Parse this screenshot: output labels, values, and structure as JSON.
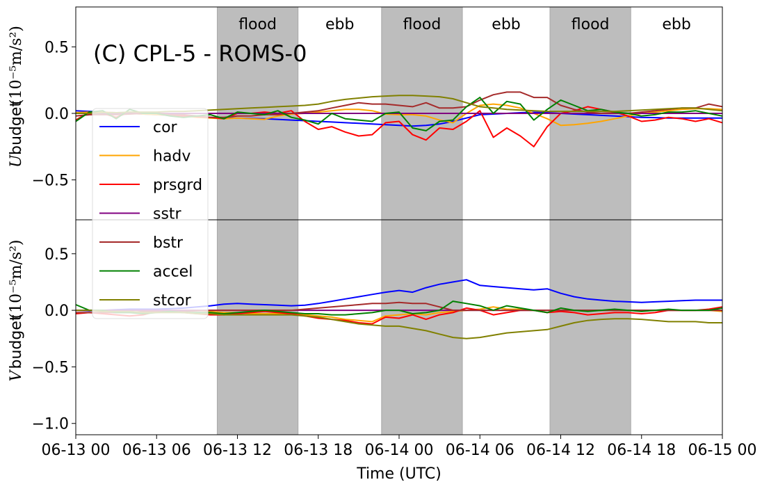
{
  "chart_data": {
    "type": "line",
    "title": "(C) CPL-5 - ROMS-0",
    "xlabel": "Time (UTC)",
    "x_tick_labels": [
      "06-13 00",
      "06-13 06",
      "06-13 12",
      "06-13 18",
      "06-14 00",
      "06-14 06",
      "06-14 12",
      "06-14 18",
      "06-15 00"
    ],
    "x_tick_hours": [
      0,
      6,
      12,
      18,
      24,
      30,
      36,
      42,
      48
    ],
    "xlim": [
      0,
      48
    ],
    "x": [
      0,
      1,
      2,
      3,
      4,
      5,
      6,
      7,
      8,
      9,
      10,
      11,
      12,
      13,
      14,
      15,
      16,
      17,
      18,
      19,
      20,
      21,
      22,
      23,
      24,
      25,
      26,
      27,
      28,
      29,
      30,
      31,
      32,
      33,
      34,
      35,
      36,
      37,
      38,
      39,
      40,
      41,
      42,
      43,
      44,
      45,
      46,
      47,
      48
    ],
    "tidal_phases": [
      {
        "label": "flood",
        "start": 10.5,
        "end": 16.5,
        "shaded": true
      },
      {
        "label": "ebb",
        "start": 16.5,
        "end": 22.7,
        "shaded": false
      },
      {
        "label": "flood",
        "start": 22.7,
        "end": 28.7,
        "shaded": true
      },
      {
        "label": "ebb",
        "start": 28.7,
        "end": 35.2,
        "shaded": false
      },
      {
        "label": "flood",
        "start": 35.2,
        "end": 41.2,
        "shaded": true
      },
      {
        "label": "ebb",
        "start": 41.2,
        "end": 48,
        "shaded": false
      }
    ],
    "legend": {
      "placement": "left",
      "entries": [
        "cor",
        "hadv",
        "prsgrd",
        "sstr",
        "bstr",
        "accel",
        "stcor"
      ]
    },
    "panels": [
      {
        "ylabel_prefix": "U",
        "ylabel_text": "budget",
        "ylabel_units": "(10⁻⁵m/s²)",
        "ylim": [
          -0.8,
          0.8
        ],
        "yticks": [
          0.5,
          0.0,
          -0.5
        ],
        "ytick_labels": [
          "0.5",
          "0.0",
          "−0.5"
        ],
        "series": [
          {
            "name": "cor",
            "color": "#0000ff",
            "values": [
              0.02,
              0.015,
              0.01,
              0.005,
              0.0,
              -0.005,
              -0.01,
              -0.015,
              -0.02,
              -0.025,
              -0.03,
              -0.035,
              -0.035,
              -0.038,
              -0.04,
              -0.045,
              -0.05,
              -0.055,
              -0.06,
              -0.065,
              -0.07,
              -0.075,
              -0.08,
              -0.085,
              -0.09,
              -0.095,
              -0.09,
              -0.08,
              -0.06,
              -0.035,
              -0.01,
              -0.005,
              0.0,
              0.005,
              0.008,
              0.005,
              0.0,
              -0.005,
              -0.01,
              -0.015,
              -0.02,
              -0.025,
              -0.03,
              -0.032,
              -0.035,
              -0.035,
              -0.035,
              -0.035,
              -0.035
            ]
          },
          {
            "name": "hadv",
            "color": "#ffa500",
            "values": [
              0.005,
              0.01,
              0.01,
              0.005,
              0.0,
              -0.005,
              -0.01,
              -0.015,
              -0.02,
              -0.03,
              -0.035,
              -0.04,
              -0.035,
              -0.04,
              -0.045,
              -0.02,
              -0.005,
              0.0,
              0.01,
              0.02,
              0.03,
              0.03,
              0.02,
              -0.005,
              -0.01,
              -0.01,
              -0.02,
              -0.05,
              -0.07,
              0.0,
              0.06,
              0.07,
              0.06,
              0.04,
              0.0,
              -0.04,
              -0.09,
              -0.085,
              -0.075,
              -0.06,
              -0.04,
              -0.02,
              0.0,
              0.01,
              0.02,
              0.03,
              0.035,
              0.035,
              0.03
            ]
          },
          {
            "name": "prsgrd",
            "color": "#ff0000",
            "values": [
              -0.05,
              0.01,
              0.0,
              -0.03,
              0.01,
              0.0,
              0.005,
              -0.01,
              -0.02,
              -0.025,
              -0.03,
              -0.04,
              0.0,
              0.0,
              0.01,
              0.0,
              0.02,
              -0.06,
              -0.12,
              -0.1,
              -0.14,
              -0.17,
              -0.16,
              -0.07,
              -0.06,
              -0.16,
              -0.2,
              -0.11,
              -0.12,
              -0.06,
              0.02,
              -0.18,
              -0.11,
              -0.17,
              -0.25,
              -0.1,
              0.0,
              0.02,
              0.05,
              0.03,
              0.01,
              -0.02,
              -0.06,
              -0.05,
              -0.03,
              -0.04,
              -0.06,
              -0.04,
              -0.07
            ]
          },
          {
            "name": "sstr",
            "color": "#800080",
            "values": [
              0.0,
              0.0,
              0.0,
              0.0,
              0.0,
              0.0,
              0.0,
              0.0,
              0.0,
              0.0,
              0.0,
              0.0,
              0.0,
              0.0,
              0.0,
              0.0,
              0.0,
              0.0,
              0.0,
              0.0,
              0.0,
              0.0,
              0.0,
              0.0,
              0.0,
              0.0,
              0.0,
              0.0,
              0.0,
              0.0,
              0.0,
              0.0,
              0.0,
              0.0,
              0.0,
              0.0,
              0.0,
              0.0,
              0.0,
              0.0,
              0.0,
              0.0,
              0.0,
              0.0,
              0.0,
              0.0,
              0.0,
              0.0,
              0.0
            ]
          },
          {
            "name": "bstr",
            "color": "#a52a2a",
            "values": [
              -0.02,
              -0.01,
              -0.01,
              -0.01,
              -0.005,
              0.0,
              0.0,
              -0.01,
              -0.01,
              -0.02,
              -0.03,
              -0.03,
              -0.02,
              -0.02,
              -0.01,
              -0.01,
              0.0,
              0.01,
              0.02,
              0.04,
              0.06,
              0.08,
              0.07,
              0.07,
              0.06,
              0.05,
              0.08,
              0.04,
              0.04,
              0.05,
              0.1,
              0.14,
              0.16,
              0.16,
              0.12,
              0.12,
              0.06,
              0.03,
              0.01,
              0.0,
              0.005,
              0.0,
              0.01,
              0.02,
              0.03,
              0.04,
              0.04,
              0.07,
              0.05
            ]
          },
          {
            "name": "accel",
            "color": "#008000",
            "values": [
              -0.06,
              0.01,
              0.02,
              -0.04,
              0.03,
              0.0,
              0.0,
              -0.02,
              -0.03,
              -0.02,
              -0.01,
              -0.04,
              0.01,
              0.0,
              -0.01,
              0.02,
              -0.03,
              -0.05,
              -0.08,
              0.0,
              -0.04,
              -0.05,
              -0.06,
              0.0,
              0.01,
              -0.11,
              -0.13,
              -0.06,
              -0.05,
              0.05,
              0.12,
              0.0,
              0.09,
              0.07,
              -0.05,
              0.03,
              0.1,
              0.06,
              0.02,
              0.03,
              0.01,
              0.0,
              -0.02,
              -0.01,
              0.01,
              0.01,
              0.02,
              0.0,
              -0.02
            ]
          },
          {
            "name": "stcor",
            "color": "#808000",
            "values": [
              0.0,
              0.0,
              0.005,
              0.005,
              0.01,
              0.01,
              0.01,
              0.015,
              0.015,
              0.02,
              0.025,
              0.03,
              0.035,
              0.04,
              0.045,
              0.05,
              0.055,
              0.06,
              0.07,
              0.09,
              0.105,
              0.115,
              0.125,
              0.13,
              0.135,
              0.135,
              0.13,
              0.125,
              0.11,
              0.08,
              0.05,
              0.04,
              0.03,
              0.025,
              0.02,
              0.015,
              0.015,
              0.015,
              0.015,
              0.015,
              0.015,
              0.02,
              0.025,
              0.03,
              0.035,
              0.04,
              0.04,
              0.03,
              0.02
            ]
          }
        ]
      },
      {
        "ylabel_prefix": "V",
        "ylabel_text": "budget",
        "ylabel_units": "(10⁻⁵m/s²)",
        "ylim": [
          -1.1,
          0.8
        ],
        "yticks": [
          0.5,
          0.0,
          -0.5,
          -1.0
        ],
        "ytick_labels": [
          "0.5",
          "0.0",
          "−0.5",
          "−1.0"
        ],
        "series": [
          {
            "name": "cor",
            "color": "#0000ff",
            "values": [
              0.0,
              -0.005,
              0.0,
              0.005,
              0.01,
              0.01,
              0.01,
              0.015,
              0.02,
              0.03,
              0.04,
              0.055,
              0.06,
              0.055,
              0.05,
              0.045,
              0.04,
              0.045,
              0.06,
              0.08,
              0.1,
              0.12,
              0.14,
              0.16,
              0.175,
              0.16,
              0.2,
              0.23,
              0.25,
              0.27,
              0.22,
              0.21,
              0.2,
              0.19,
              0.18,
              0.19,
              0.15,
              0.12,
              0.1,
              0.09,
              0.08,
              0.075,
              0.07,
              0.075,
              0.08,
              0.085,
              0.09,
              0.09,
              0.09
            ]
          },
          {
            "name": "hadv",
            "color": "#ffa500",
            "values": [
              0.0,
              0.0,
              0.0,
              0.0,
              0.0,
              0.0,
              0.0,
              0.0,
              0.0,
              0.0,
              -0.01,
              -0.02,
              -0.02,
              -0.03,
              -0.03,
              -0.03,
              -0.03,
              -0.04,
              -0.05,
              -0.06,
              -0.08,
              -0.09,
              -0.1,
              -0.05,
              -0.04,
              -0.03,
              -0.04,
              -0.02,
              -0.01,
              0.0,
              0.01,
              0.03,
              0.01,
              0.01,
              0.0,
              0.0,
              0.0,
              0.0,
              0.0,
              0.0,
              0.0,
              0.0,
              0.0,
              0.0,
              0.0,
              0.0,
              0.0,
              0.0,
              -0.01
            ]
          },
          {
            "name": "prsgrd",
            "color": "#ff0000",
            "values": [
              -0.03,
              -0.02,
              -0.03,
              -0.04,
              -0.05,
              -0.04,
              -0.01,
              -0.01,
              -0.02,
              -0.03,
              -0.04,
              -0.04,
              -0.03,
              -0.02,
              -0.01,
              -0.02,
              -0.03,
              -0.05,
              -0.07,
              -0.08,
              -0.09,
              -0.11,
              -0.12,
              -0.06,
              -0.07,
              -0.04,
              -0.08,
              -0.04,
              -0.02,
              0.02,
              0.0,
              -0.04,
              -0.02,
              0.0,
              0.0,
              -0.02,
              -0.01,
              -0.02,
              -0.04,
              -0.03,
              -0.02,
              -0.02,
              -0.03,
              -0.02,
              0.0,
              0.0,
              0.0,
              0.01,
              0.03
            ]
          },
          {
            "name": "sstr",
            "color": "#800080",
            "values": [
              0.0,
              0.0,
              0.0,
              0.0,
              0.0,
              0.0,
              0.0,
              0.0,
              0.0,
              0.0,
              0.0,
              0.0,
              0.0,
              0.0,
              0.0,
              0.0,
              0.0,
              0.0,
              0.0,
              0.0,
              0.0,
              0.0,
              0.0,
              0.0,
              0.0,
              0.0,
              0.0,
              0.0,
              0.0,
              0.0,
              0.0,
              0.0,
              0.0,
              0.0,
              0.0,
              0.0,
              0.0,
              0.0,
              0.0,
              0.0,
              0.0,
              0.0,
              0.0,
              0.0,
              0.0,
              0.0,
              0.0,
              0.0,
              0.0
            ]
          },
          {
            "name": "bstr",
            "color": "#a52a2a",
            "values": [
              -0.02,
              -0.02,
              -0.02,
              -0.02,
              -0.02,
              -0.01,
              -0.01,
              -0.01,
              -0.01,
              -0.005,
              0.0,
              0.0,
              0.0,
              0.0,
              0.0,
              0.0,
              0.0,
              0.01,
              0.02,
              0.03,
              0.04,
              0.05,
              0.06,
              0.06,
              0.07,
              0.06,
              0.06,
              0.03,
              0.0,
              0.0,
              0.0,
              0.0,
              0.0,
              0.0,
              0.0,
              0.0,
              0.0,
              0.0,
              0.0,
              0.0,
              0.0,
              0.0,
              0.0,
              0.0,
              0.0,
              0.0,
              0.0,
              0.0,
              0.0
            ]
          },
          {
            "name": "accel",
            "color": "#008000",
            "values": [
              0.05,
              0.0,
              0.0,
              -0.02,
              -0.02,
              -0.03,
              -0.02,
              -0.01,
              -0.02,
              -0.02,
              -0.02,
              -0.03,
              -0.02,
              -0.01,
              0.0,
              -0.01,
              -0.02,
              -0.03,
              -0.03,
              -0.04,
              -0.04,
              -0.03,
              -0.02,
              0.0,
              0.0,
              -0.03,
              -0.02,
              0.0,
              0.08,
              0.06,
              0.04,
              0.0,
              0.04,
              0.02,
              0.0,
              -0.02,
              0.02,
              0.0,
              -0.01,
              0.0,
              0.01,
              0.0,
              -0.01,
              0.0,
              0.01,
              0.0,
              0.0,
              0.0,
              0.02
            ]
          },
          {
            "name": "stcor",
            "color": "#808000",
            "values": [
              0.0,
              0.0,
              -0.01,
              -0.01,
              -0.01,
              -0.02,
              -0.02,
              -0.02,
              -0.02,
              -0.03,
              -0.03,
              -0.04,
              -0.04,
              -0.04,
              -0.04,
              -0.04,
              -0.04,
              -0.05,
              -0.06,
              -0.08,
              -0.1,
              -0.12,
              -0.13,
              -0.14,
              -0.14,
              -0.16,
              -0.18,
              -0.21,
              -0.24,
              -0.25,
              -0.24,
              -0.22,
              -0.2,
              -0.19,
              -0.18,
              -0.17,
              -0.14,
              -0.11,
              -0.09,
              -0.08,
              -0.075,
              -0.075,
              -0.08,
              -0.09,
              -0.1,
              -0.1,
              -0.1,
              -0.11,
              -0.11
            ]
          }
        ]
      }
    ]
  }
}
